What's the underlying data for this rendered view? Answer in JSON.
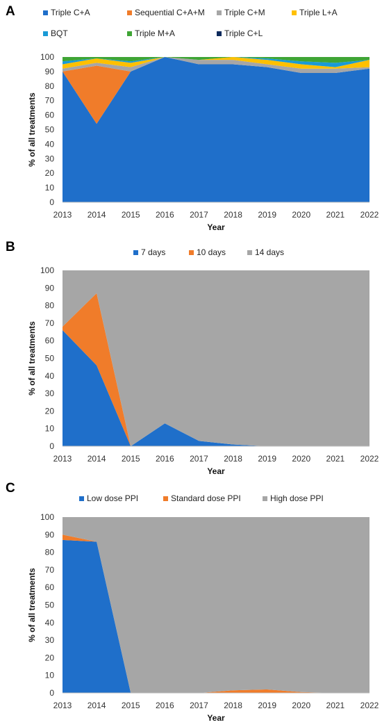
{
  "chart_data": [
    {
      "panel": "A",
      "type": "area",
      "stacked": true,
      "xlabel": "Year",
      "ylabel": "% of all treatments",
      "ylim": [
        0,
        100
      ],
      "yticks": [
        0,
        10,
        20,
        30,
        40,
        50,
        60,
        70,
        80,
        90,
        100
      ],
      "x": [
        "2013",
        "2014",
        "2015",
        "2016",
        "2017",
        "2018",
        "2019",
        "2020",
        "2021",
        "2022"
      ],
      "legend_position": "top",
      "series": [
        {
          "name": "Triple C+A",
          "color": "#1f6fca",
          "values": [
            90,
            54,
            90,
            100,
            95,
            95,
            93,
            89,
            89,
            92
          ]
        },
        {
          "name": "Sequential C+A+M",
          "color": "#f07c2a",
          "values": [
            0,
            40,
            0,
            0,
            0,
            0,
            0,
            0,
            0,
            0
          ]
        },
        {
          "name": "Triple C+M",
          "color": "#a6a6a6",
          "values": [
            2,
            2,
            3,
            0,
            3,
            3,
            2,
            3,
            3,
            1
          ]
        },
        {
          "name": "Triple L+A",
          "color": "#ffc000",
          "values": [
            3,
            3,
            3,
            0,
            0,
            2,
            3,
            3,
            1,
            5
          ]
        },
        {
          "name": "BQT",
          "color": "#1a9ad6",
          "values": [
            2,
            0,
            1,
            0,
            0,
            0,
            1,
            2,
            3,
            0
          ]
        },
        {
          "name": "Triple M+A",
          "color": "#3fa535",
          "values": [
            3,
            1,
            3,
            0,
            2,
            0,
            1,
            3,
            4,
            2
          ]
        },
        {
          "name": "Triple C+L",
          "color": "#0d2a5c",
          "values": [
            0,
            0,
            0,
            0,
            0,
            0,
            0,
            0,
            0,
            0
          ]
        }
      ]
    },
    {
      "panel": "B",
      "type": "area",
      "stacked": true,
      "xlabel": "Year",
      "ylabel": "% of all treatments",
      "ylim": [
        0,
        100
      ],
      "yticks": [
        0,
        10,
        20,
        30,
        40,
        50,
        60,
        70,
        80,
        90,
        100
      ],
      "x": [
        "2013",
        "2014",
        "2015",
        "2016",
        "2017",
        "2018",
        "2019",
        "2020",
        "2021",
        "2022"
      ],
      "legend_position": "top",
      "series": [
        {
          "name": "7 days",
          "color": "#1f6fca",
          "values": [
            66,
            46,
            0,
            13,
            3,
            1,
            0,
            0,
            0,
            0
          ]
        },
        {
          "name": "10 days",
          "color": "#f07c2a",
          "values": [
            2,
            41,
            0,
            0,
            0,
            0,
            0,
            0,
            0,
            0
          ]
        },
        {
          "name": "14 days",
          "color": "#a6a6a6",
          "values": [
            32,
            13,
            100,
            87,
            97,
            99,
            100,
            100,
            100,
            100
          ]
        }
      ]
    },
    {
      "panel": "C",
      "type": "area",
      "stacked": true,
      "xlabel": "Year",
      "ylabel": "% of all treatments",
      "ylim": [
        0,
        100
      ],
      "yticks": [
        0,
        10,
        20,
        30,
        40,
        50,
        60,
        70,
        80,
        90,
        100
      ],
      "x": [
        "2013",
        "2014",
        "2015",
        "2016",
        "2017",
        "2018",
        "2019",
        "2020",
        "2021",
        "2022"
      ],
      "legend_position": "top",
      "series": [
        {
          "name": "Low dose PPI",
          "color": "#1f6fca",
          "values": [
            87,
            86,
            0,
            0,
            0,
            0,
            0,
            0,
            0,
            0
          ]
        },
        {
          "name": "Standard dose PPI",
          "color": "#f07c2a",
          "values": [
            3,
            0,
            0,
            0,
            0,
            1.5,
            2,
            0.5,
            0,
            0
          ]
        },
        {
          "name": "High dose PPI",
          "color": "#a6a6a6",
          "values": [
            10,
            14,
            100,
            100,
            100,
            98.5,
            98,
            99.5,
            100,
            100
          ]
        }
      ]
    }
  ]
}
